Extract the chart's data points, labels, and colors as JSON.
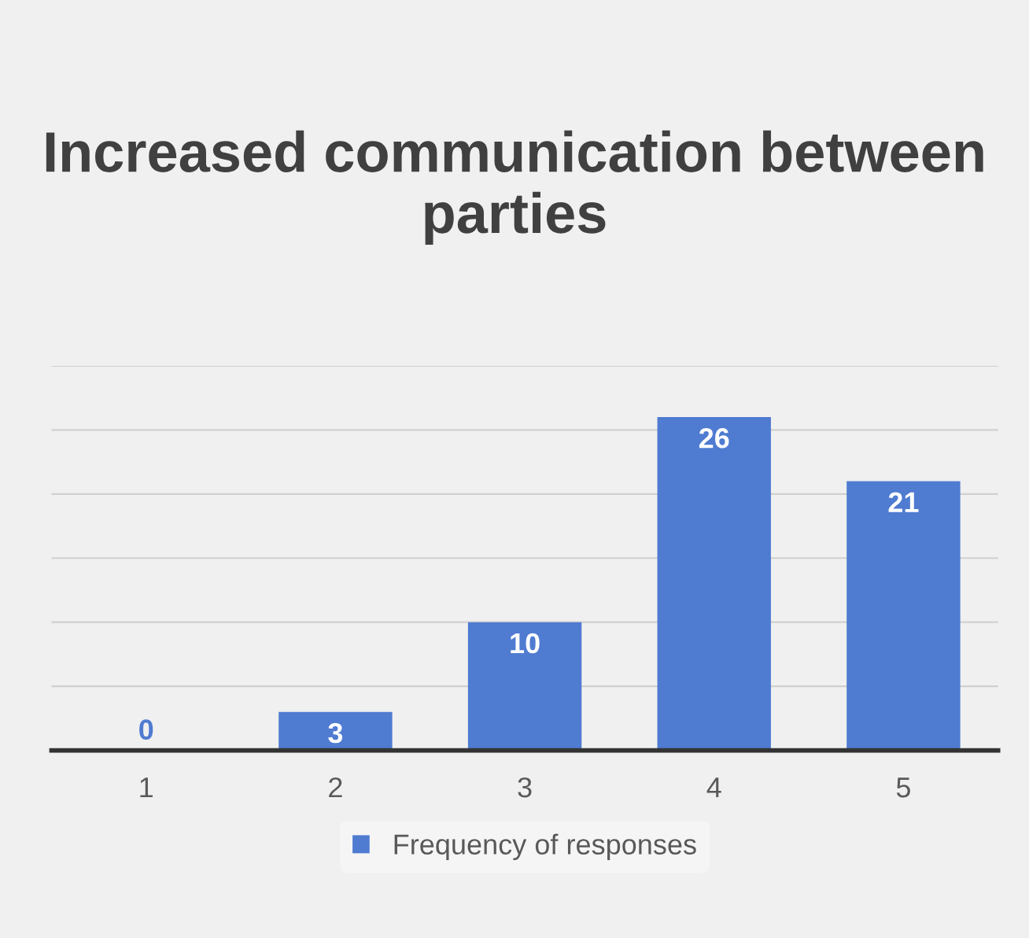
{
  "chart_data": {
    "type": "bar",
    "title": "Increased communication between parties",
    "categories": [
      "1",
      "2",
      "3",
      "4",
      "5"
    ],
    "series": [
      {
        "name": "Frequency of responses",
        "color": "#4f7bd1",
        "values": [
          0,
          3,
          10,
          26,
          21
        ]
      }
    ],
    "ylim": [
      0,
      30
    ],
    "yticks": [
      {
        "value": 0,
        "label": null
      },
      {
        "value": 5,
        "label": null
      },
      {
        "value": 10,
        "label": null
      },
      {
        "value": 15,
        "label": null
      },
      {
        "value": 20,
        "label": null
      },
      {
        "value": 25,
        "label": null
      },
      {
        "value": 30,
        "label": null
      }
    ],
    "tick_labels": "x",
    "grid": "y",
    "legend": "bottom",
    "data_labels": true
  }
}
